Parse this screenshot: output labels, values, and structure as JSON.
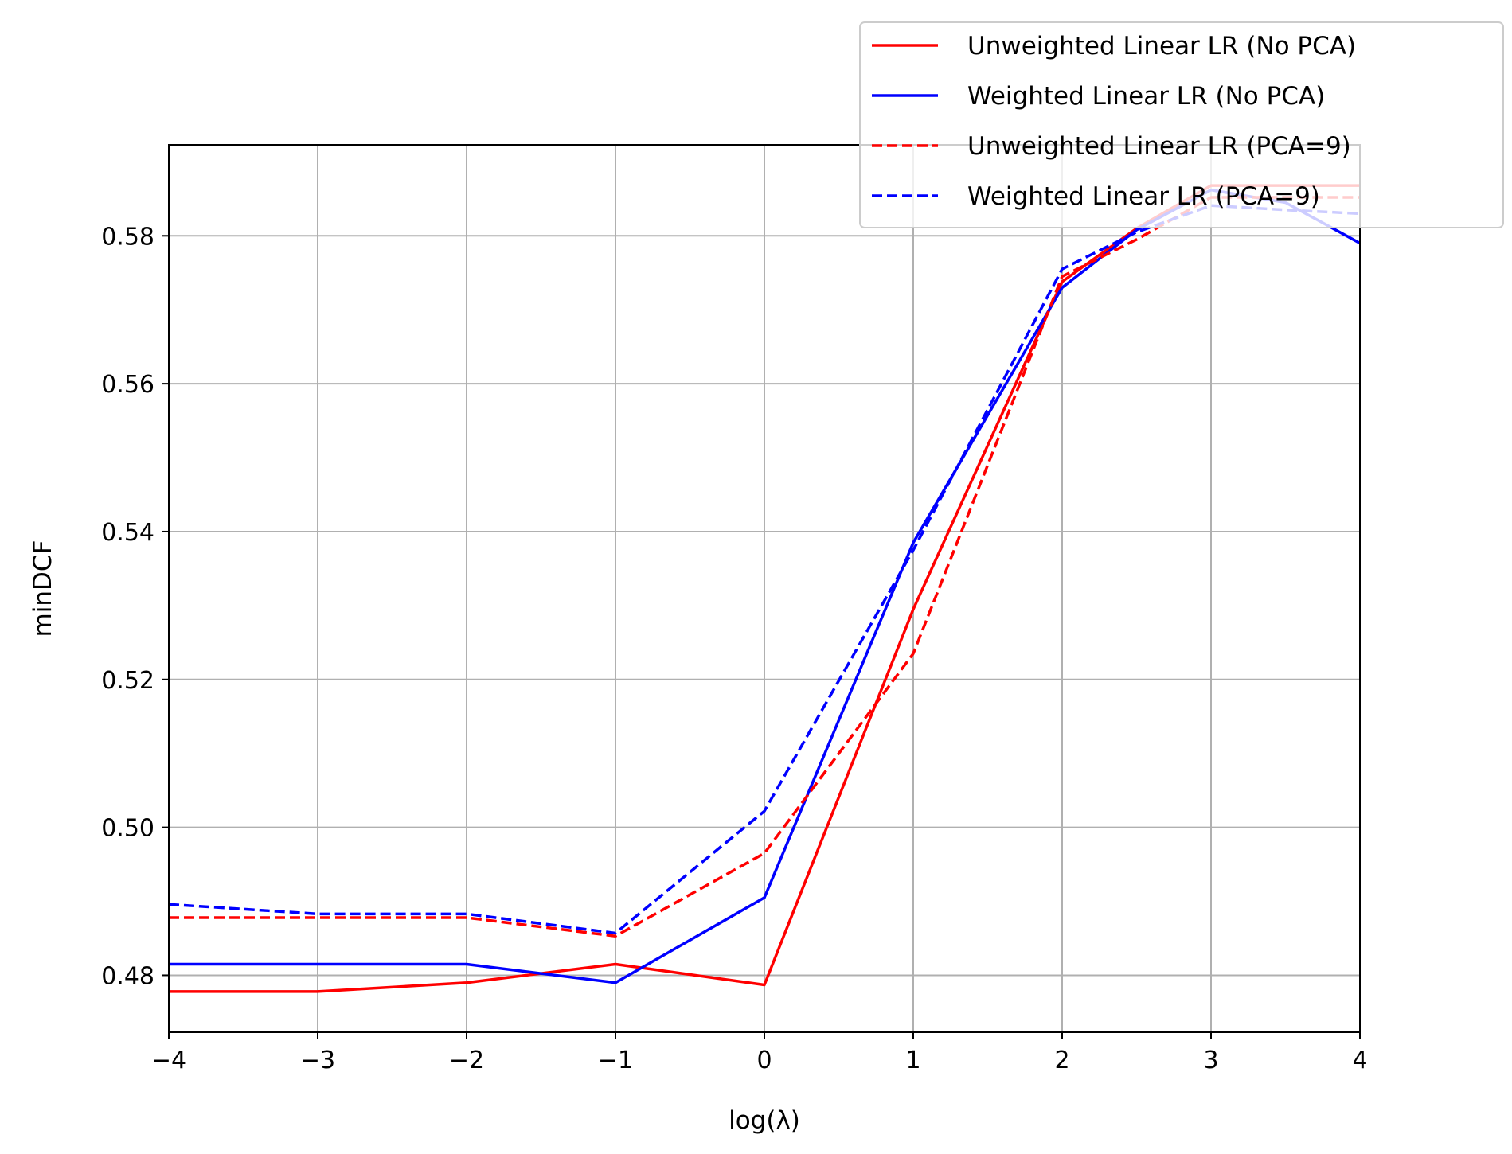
{
  "chart_data": {
    "type": "line",
    "title": "",
    "xlabel": "log(λ)",
    "ylabel": "minDCF",
    "xlim": [
      -4,
      4
    ],
    "ylim": [
      0.4723,
      0.5923
    ],
    "grid": true,
    "legend_position": "top-right",
    "x": [
      -4,
      -3,
      -2,
      -1,
      0,
      1,
      2,
      2.5,
      3,
      3.5,
      4
    ],
    "xticks": [
      -4,
      -3,
      -2,
      -1,
      0,
      1,
      2,
      3,
      4
    ],
    "xtick_labels": [
      "−4",
      "−3",
      "−2",
      "−1",
      "0",
      "1",
      "2",
      "3",
      "4"
    ],
    "yticks": [
      0.48,
      0.5,
      0.52,
      0.54,
      0.56,
      0.58
    ],
    "ytick_labels": [
      "0.48",
      "0.50",
      "0.52",
      "0.54",
      "0.56",
      "0.58"
    ],
    "series": [
      {
        "name": "Unweighted Linear LR (No PCA)",
        "color": "#ff0000",
        "dash": "solid",
        "values": [
          0.4778,
          0.4778,
          0.479,
          0.4815,
          0.4787,
          0.5295,
          0.5738,
          0.581,
          0.5868,
          0.5868,
          0.5868
        ]
      },
      {
        "name": "Weighted Linear LR (No PCA)",
        "color": "#0000ff",
        "dash": "solid",
        "values": [
          0.4815,
          0.4815,
          0.4815,
          0.479,
          0.4905,
          0.5385,
          0.573,
          0.5808,
          0.5862,
          0.5845,
          0.579
        ]
      },
      {
        "name": "Unweighted Linear LR (PCA=9)",
        "color": "#ff0000",
        "dash": "dashed",
        "values": [
          0.4878,
          0.4878,
          0.4878,
          0.4853,
          0.4965,
          0.5235,
          0.5745,
          0.5795,
          0.5852,
          0.5852,
          0.5852
        ]
      },
      {
        "name": "Weighted Linear LR (PCA=9)",
        "color": "#0000ff",
        "dash": "dashed",
        "values": [
          0.4896,
          0.4883,
          0.4883,
          0.4857,
          0.5022,
          0.5375,
          0.5755,
          0.5805,
          0.5841,
          0.5835,
          0.583
        ]
      }
    ]
  }
}
